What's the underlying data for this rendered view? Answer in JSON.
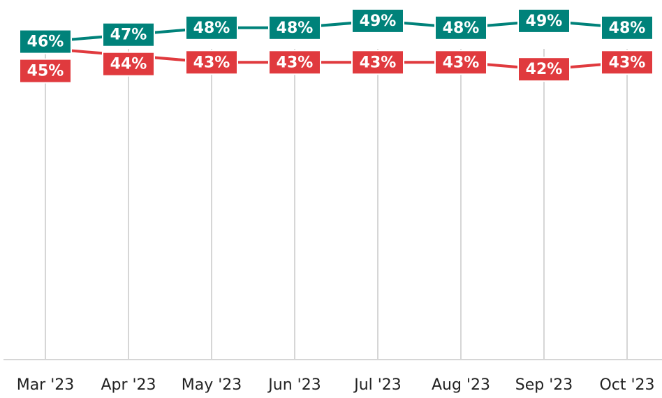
{
  "chart_data": {
    "type": "line",
    "categories": [
      "Mar '23",
      "Apr '23",
      "May '23",
      "Jun '23",
      "Jul '23",
      "Aug '23",
      "Sep '23",
      "Oct '23"
    ],
    "series": [
      {
        "color": "#00827a",
        "values": [
          46,
          47,
          48,
          48,
          49,
          48,
          49,
          48
        ],
        "value_labels": [
          "46%",
          "47%",
          "48%",
          "48%",
          "49%",
          "48%",
          "49%",
          "48%"
        ]
      },
      {
        "color": "#e03a3e",
        "values": [
          45,
          44,
          43,
          43,
          43,
          43,
          42,
          43
        ],
        "value_labels": [
          "45%",
          "44%",
          "43%",
          "43%",
          "43%",
          "43%",
          "42%",
          "43%"
        ]
      }
    ],
    "ylim": [
      0,
      50
    ]
  }
}
